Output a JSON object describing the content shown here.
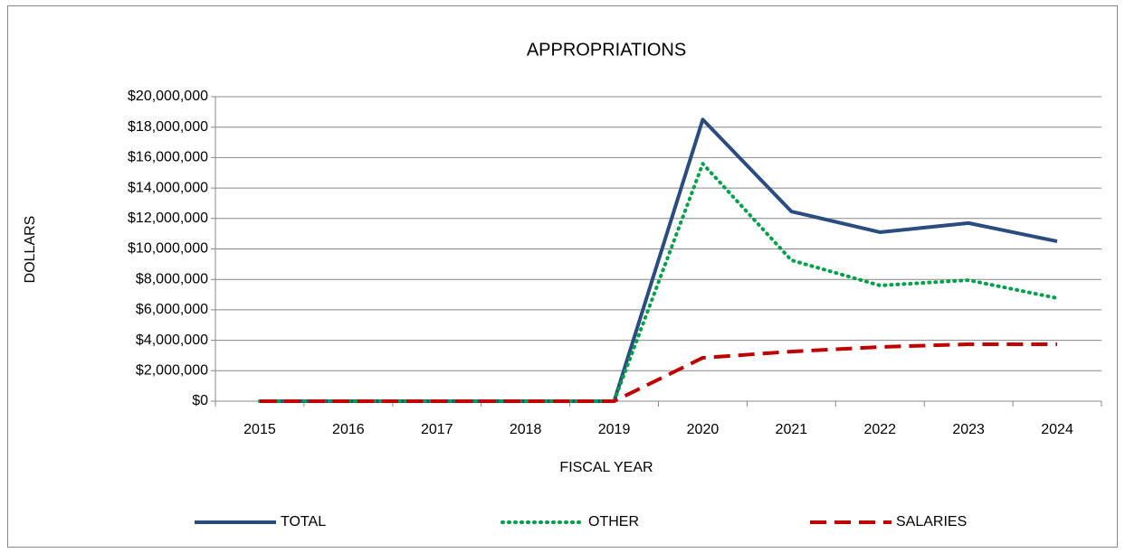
{
  "chart_data": {
    "type": "line",
    "title": "APPROPRIATIONS",
    "xlabel": "FISCAL YEAR",
    "ylabel": "DOLLARS",
    "categories": [
      "2015",
      "2016",
      "2017",
      "2018",
      "2019",
      "2020",
      "2021",
      "2022",
      "2023",
      "2024"
    ],
    "series": [
      {
        "name": "TOTAL",
        "color": "#2b4c7e",
        "dash": "solid",
        "values": [
          0,
          0,
          0,
          0,
          0,
          18500000,
          12460000,
          11100000,
          11700000,
          10500000
        ]
      },
      {
        "name": "OTHER",
        "color": "#00a04a",
        "dash": "dotted",
        "values": [
          0,
          0,
          0,
          0,
          0,
          15600000,
          9260000,
          7600000,
          7950000,
          6770000
        ]
      },
      {
        "name": "SALARIES",
        "color": "#c00000",
        "dash": "dashed",
        "values": [
          0,
          0,
          0,
          0,
          0,
          2850000,
          3260000,
          3560000,
          3740000,
          3740000
        ]
      }
    ],
    "ylim": [
      0,
      20000000
    ],
    "yticks": [
      {
        "value": 0,
        "label": "$0"
      },
      {
        "value": 2000000,
        "label": "$2,000,000"
      },
      {
        "value": 4000000,
        "label": "$4,000,000"
      },
      {
        "value": 6000000,
        "label": "$6,000,000"
      },
      {
        "value": 8000000,
        "label": "$8,000,000"
      },
      {
        "value": 10000000,
        "label": "$10,000,000"
      },
      {
        "value": 12000000,
        "label": "$12,000,000"
      },
      {
        "value": 14000000,
        "label": "$14,000,000"
      },
      {
        "value": 16000000,
        "label": "$16,000,000"
      },
      {
        "value": 18000000,
        "label": "$18,000,000"
      },
      {
        "value": 20000000,
        "label": "$20,000,000"
      }
    ],
    "grid": true,
    "legend": "bottom"
  }
}
